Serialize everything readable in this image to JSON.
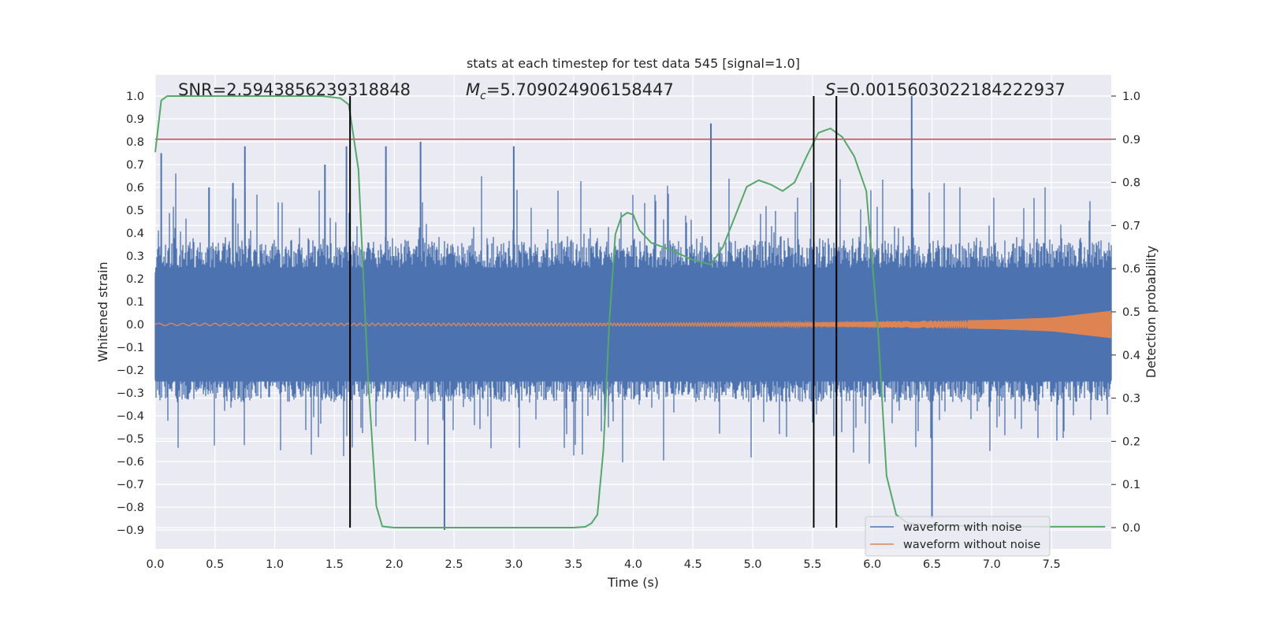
{
  "chart_data": {
    "type": "line",
    "title": "stats at each timestep for test data 545 [signal=1.0]",
    "xlabel": "Time (s)",
    "ylabel": "Whitened strain",
    "y2label": "Detection probability",
    "xlim": [
      0.0,
      8.0
    ],
    "ylim": [
      -1.0,
      1.1
    ],
    "y2lim": [
      -0.05,
      1.05
    ],
    "grid": true,
    "x_ticks": [
      "0.0",
      "0.5",
      "1.0",
      "1.5",
      "2.0",
      "2.5",
      "3.0",
      "3.5",
      "4.0",
      "4.5",
      "5.0",
      "5.5",
      "6.0",
      "6.5",
      "7.0",
      "7.5"
    ],
    "y_ticks": [
      "1.0",
      "0.9",
      "0.8",
      "0.7",
      "0.6",
      "0.5",
      "0.4",
      "0.3",
      "0.2",
      "0.1",
      "0.0",
      "−0.1",
      "−0.2",
      "−0.3",
      "−0.4",
      "−0.5",
      "−0.6",
      "−0.7",
      "−0.8",
      "−0.9"
    ],
    "y2_ticks": [
      "1.0",
      "0.9",
      "0.8",
      "0.7",
      "0.6",
      "0.5",
      "0.4",
      "0.3",
      "0.2",
      "0.1",
      "0.0"
    ],
    "annotations": {
      "snr": "SNR=2.5943856239318848",
      "mc_symbol": "M",
      "mc_sub": "c",
      "mc_value": "=5.709024906158447",
      "s_symbol": "S",
      "s_value": "=0.0015603022184222937"
    },
    "threshold_y2": 0.9,
    "vertical_lines_x": [
      1.63,
      5.51,
      5.7
    ],
    "series": [
      {
        "name": "waveform with noise",
        "color": "#4c72b0",
        "style": "dense noise band, approx ±0.25 with spikes",
        "spikes_x": [
          0.05,
          0.45,
          0.65,
          0.75,
          1.42,
          1.6,
          1.93,
          2.22,
          2.42,
          3.0,
          4.65,
          6.33,
          6.5
        ],
        "spikes_y": [
          0.75,
          0.6,
          0.62,
          0.78,
          0.7,
          0.78,
          0.78,
          0.8,
          -0.9,
          0.78,
          0.88,
          1.0,
          -0.85
        ]
      },
      {
        "name": "waveform without noise",
        "color": "#dd8452",
        "style": "chirp, amplitude grows toward end",
        "amplitude_x": [
          0.0,
          4.0,
          5.5,
          7.0,
          7.5,
          8.0
        ],
        "amplitude_y": [
          0.005,
          0.006,
          0.01,
          0.02,
          0.03,
          0.06
        ]
      },
      {
        "name": "detection probability",
        "color": "#55a868",
        "axis": "right",
        "x": [
          0.0,
          0.05,
          0.1,
          0.2,
          0.5,
          1.0,
          1.4,
          1.55,
          1.62,
          1.7,
          1.78,
          1.85,
          1.9,
          2.0,
          2.5,
          3.0,
          3.5,
          3.6,
          3.65,
          3.7,
          3.75,
          3.8,
          3.85,
          3.9,
          3.95,
          4.0,
          4.05,
          4.15,
          4.3,
          4.5,
          4.65,
          4.75,
          4.85,
          4.95,
          5.05,
          5.15,
          5.25,
          5.35,
          5.45,
          5.55,
          5.65,
          5.75,
          5.85,
          5.95,
          6.05,
          6.12,
          6.2,
          6.3,
          6.5,
          7.0,
          7.5,
          7.95
        ],
        "y": [
          0.87,
          0.99,
          1.0,
          1.0,
          1.0,
          1.0,
          1.0,
          0.995,
          0.98,
          0.83,
          0.35,
          0.05,
          0.003,
          0.0,
          0.0,
          0.0,
          0.0,
          0.002,
          0.01,
          0.03,
          0.18,
          0.48,
          0.68,
          0.72,
          0.73,
          0.725,
          0.69,
          0.66,
          0.645,
          0.62,
          0.61,
          0.65,
          0.72,
          0.79,
          0.805,
          0.795,
          0.78,
          0.8,
          0.86,
          0.915,
          0.925,
          0.905,
          0.86,
          0.78,
          0.45,
          0.12,
          0.03,
          0.01,
          0.005,
          0.003,
          0.002,
          0.002
        ]
      }
    ],
    "legend": {
      "position": "lower-right",
      "entries": [
        {
          "label": "waveform with noise",
          "color": "#4c72b0"
        },
        {
          "label": "waveform without noise",
          "color": "#dd8452"
        }
      ]
    }
  }
}
